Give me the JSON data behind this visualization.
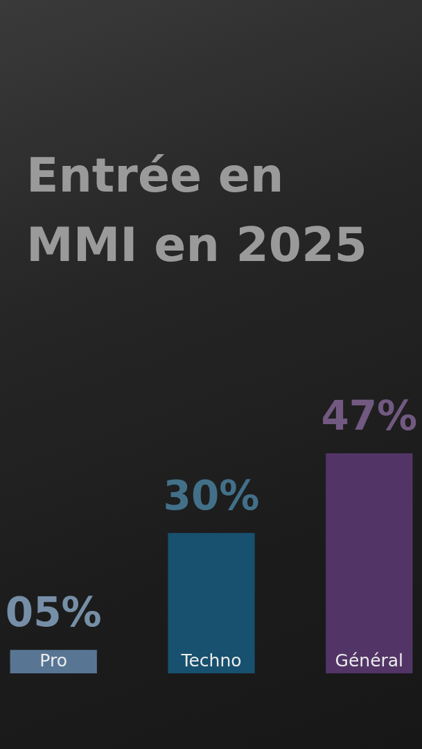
{
  "chart_data": {
    "type": "bar",
    "title": "Entrée en MMI en 2025",
    "categories": [
      "Pro",
      "Techno",
      "Général"
    ],
    "values": [
      5,
      30,
      47
    ],
    "value_labels": [
      "05%",
      "30%",
      "47%"
    ],
    "colors": [
      "#587694",
      "#18506f",
      "#523566"
    ]
  }
}
